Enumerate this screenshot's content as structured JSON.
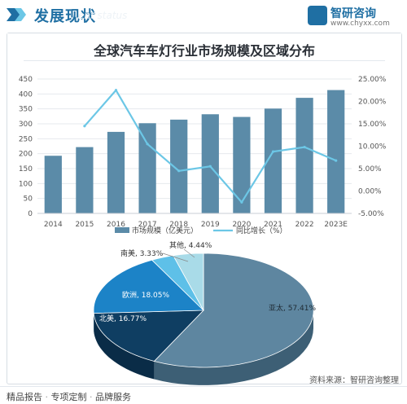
{
  "header": {
    "title": "发展现状",
    "watermark": "ent status"
  },
  "logo": {
    "name": "智研咨询",
    "url": "www.chyxx.com"
  },
  "chart_data": [
    {
      "type": "bar",
      "title": "全球汽车车灯行业市场规模及区域分布",
      "categories": [
        "2014",
        "2015",
        "2016",
        "2017",
        "2018",
        "2019",
        "2020",
        "2021",
        "2022",
        "2023E"
      ],
      "series": [
        {
          "name": "市场规模（亿美元）",
          "type": "bar",
          "axis": "left",
          "values": [
            193,
            222,
            273,
            302,
            314,
            332,
            323,
            351,
            387,
            413
          ],
          "color": "#5b8ba8"
        },
        {
          "name": "同比增长（%）",
          "type": "line",
          "axis": "right",
          "values": [
            null,
            14.5,
            22.5,
            10.5,
            4.5,
            5.5,
            -2.5,
            8.8,
            9.8,
            6.8
          ],
          "color": "#6cc7e6"
        }
      ],
      "ylim_left": [
        0,
        450
      ],
      "yticks_left": [
        "0",
        "50",
        "100",
        "150",
        "200",
        "250",
        "300",
        "350",
        "400",
        "450"
      ],
      "ylim_right": [
        -5,
        25
      ],
      "yticks_right": [
        "-5.00%",
        "0.00%",
        "5.00%",
        "10.00%",
        "15.00%",
        "20.00%",
        "25.00%"
      ],
      "grid": true,
      "legend": "bottom"
    },
    {
      "type": "pie",
      "style": "3d",
      "slices": [
        {
          "label": "亚太",
          "value": 57.41,
          "text": "亚太, 57.41%",
          "color": "#5e86a0",
          "side": "#3d5f75"
        },
        {
          "label": "北美",
          "value": 16.77,
          "text": "北美, 16.77%",
          "color": "#0f3e62",
          "side": "#0a2c47"
        },
        {
          "label": "欧洲",
          "value": 18.05,
          "text": "欧洲, 18.05%",
          "color": "#1c83c7",
          "side": "#13608f"
        },
        {
          "label": "南美",
          "value": 3.33,
          "text": "南美, 3.33%",
          "color": "#5ec0e8",
          "side": "#3f90b4"
        },
        {
          "label": "其他",
          "value": 4.44,
          "text": "其他, 4.44%",
          "color": "#a9dbe8",
          "side": "#7fb3c2"
        }
      ]
    }
  ],
  "source": "资料来源：智研咨询整理",
  "footer": {
    "items": [
      "精品报告",
      "专项定制",
      "品牌服务"
    ],
    "separator": " · "
  }
}
